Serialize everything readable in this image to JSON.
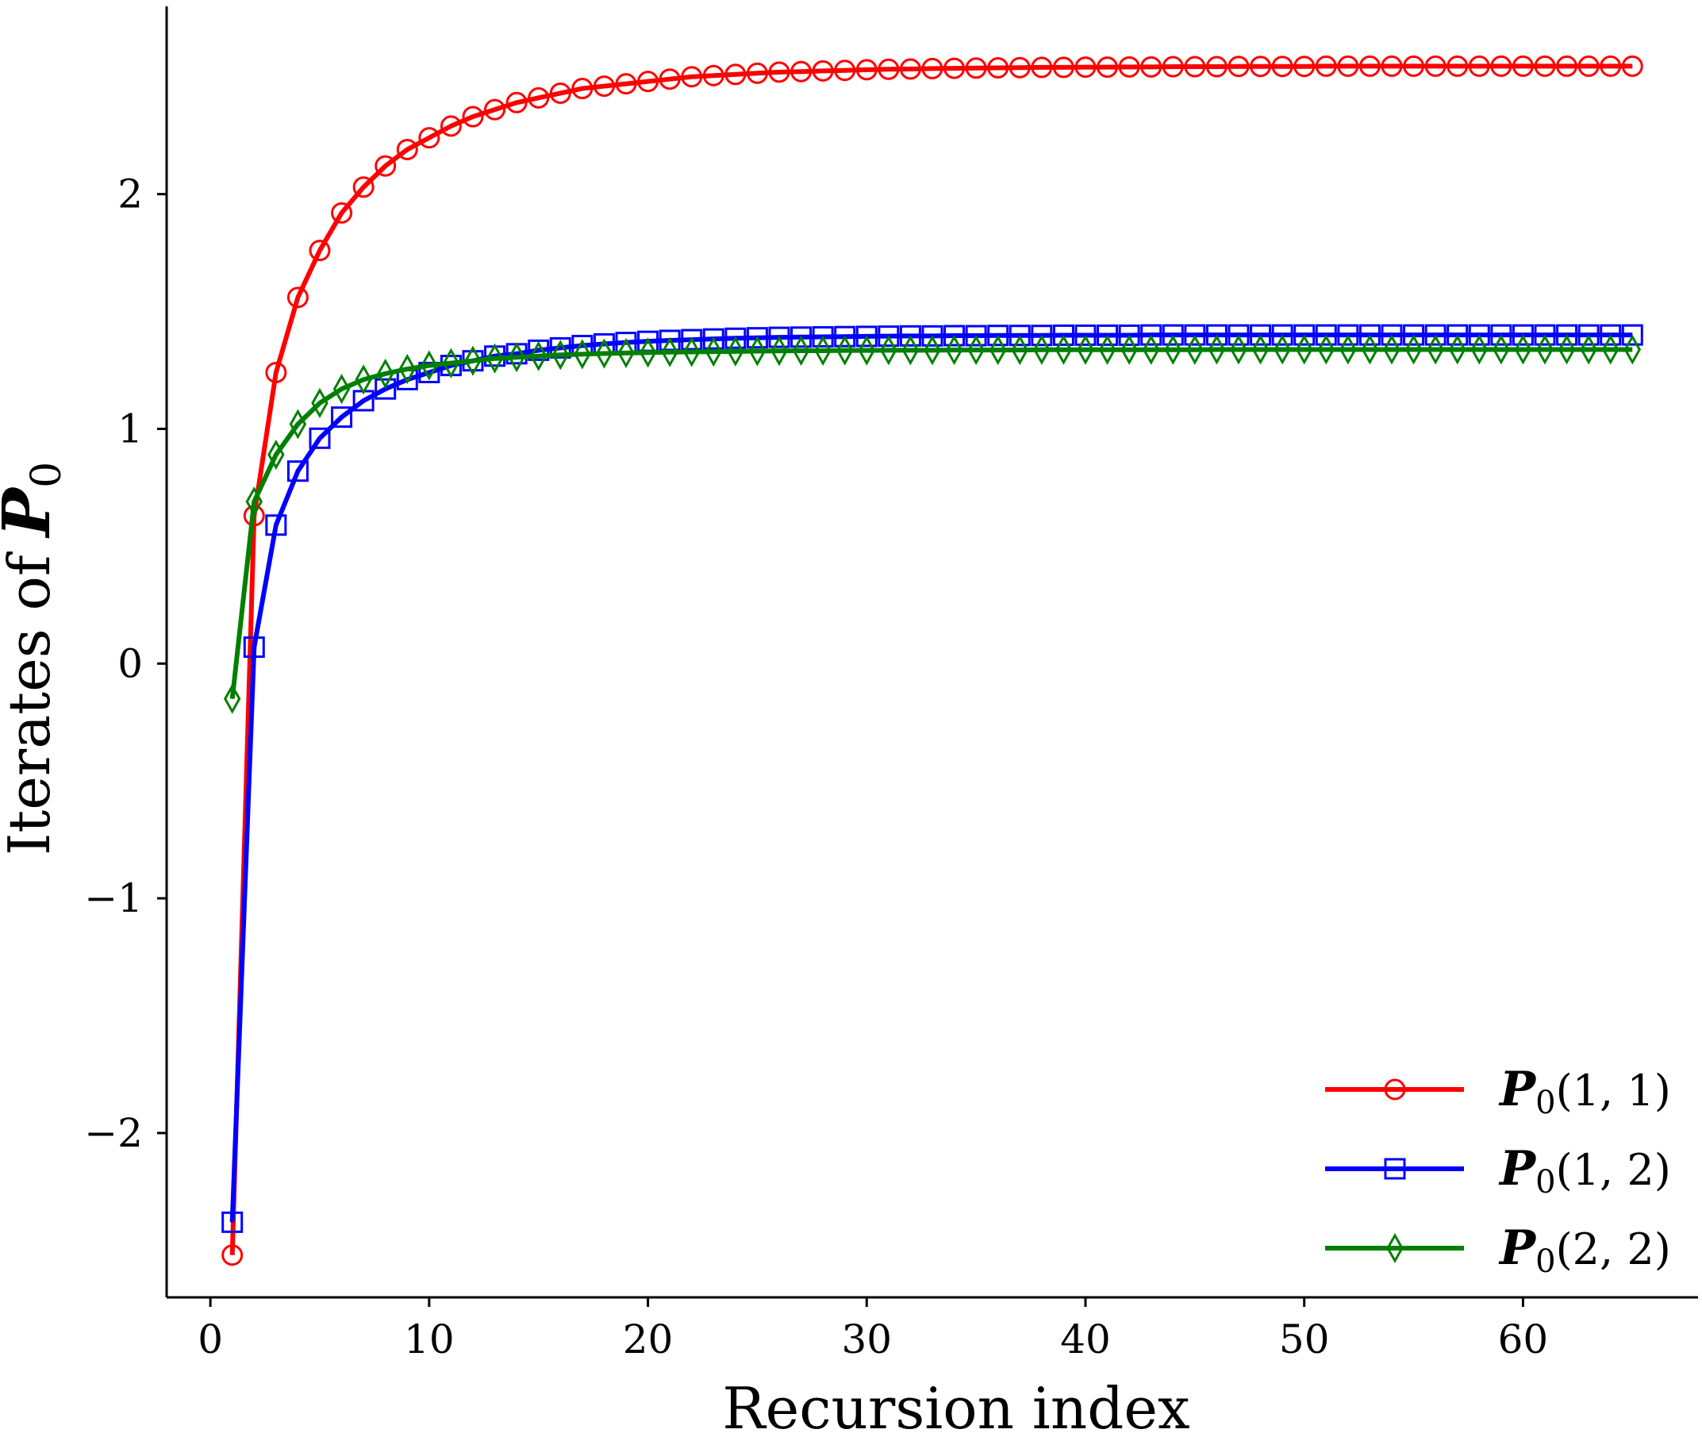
{
  "chart_data": {
    "type": "line",
    "title": "",
    "xlabel": "Recursion index",
    "ylabel_parts": {
      "text": "Iterates of ",
      "symbol": "P",
      "subscript": "0"
    },
    "xlim": [
      -2,
      68
    ],
    "ylim": [
      -2.7,
      2.8
    ],
    "xticks": [
      0,
      10,
      20,
      30,
      40,
      50,
      60
    ],
    "yticks": [
      -2,
      -1,
      0,
      1,
      2
    ],
    "ytick_labels": [
      "−2",
      "−1",
      "0",
      "1",
      "2"
    ],
    "grid": false,
    "legend_position": "lower-right",
    "series": [
      {
        "name_parts": {
          "symbol": "P",
          "subscript": "0",
          "args": "(1, 1)"
        },
        "color": "#ff0000",
        "marker": "circle",
        "x_start": 1,
        "x_end": 65,
        "values": [
          -2.52,
          0.63,
          1.24,
          1.56,
          1.76,
          1.92,
          2.03,
          2.12,
          2.19,
          2.24,
          2.29,
          2.33,
          2.36,
          2.39,
          2.41,
          2.43,
          2.45,
          2.46,
          2.47,
          2.48,
          2.49,
          2.5,
          2.505,
          2.51,
          2.515,
          2.52,
          2.522,
          2.525,
          2.527,
          2.53,
          2.532,
          2.533,
          2.535,
          2.536,
          2.537,
          2.538,
          2.539,
          2.54,
          2.54,
          2.541,
          2.541,
          2.542,
          2.542,
          2.543,
          2.543,
          2.543,
          2.544,
          2.544,
          2.544,
          2.544,
          2.545,
          2.545,
          2.545,
          2.545,
          2.545,
          2.545,
          2.545,
          2.545,
          2.545,
          2.545,
          2.545,
          2.545,
          2.545,
          2.545,
          2.545
        ]
      },
      {
        "name_parts": {
          "symbol": "P",
          "subscript": "0",
          "args": "(1, 2)"
        },
        "color": "#0000ff",
        "marker": "square",
        "x_start": 1,
        "x_end": 65,
        "values": [
          -2.38,
          0.07,
          0.59,
          0.82,
          0.96,
          1.05,
          1.12,
          1.17,
          1.21,
          1.24,
          1.27,
          1.29,
          1.31,
          1.32,
          1.335,
          1.345,
          1.355,
          1.362,
          1.368,
          1.373,
          1.377,
          1.38,
          1.383,
          1.386,
          1.388,
          1.39,
          1.391,
          1.392,
          1.393,
          1.394,
          1.395,
          1.396,
          1.396,
          1.397,
          1.397,
          1.398,
          1.398,
          1.398,
          1.399,
          1.399,
          1.399,
          1.399,
          1.4,
          1.4,
          1.4,
          1.4,
          1.4,
          1.4,
          1.4,
          1.4,
          1.4,
          1.4,
          1.4,
          1.4,
          1.4,
          1.4,
          1.4,
          1.4,
          1.4,
          1.4,
          1.4,
          1.4,
          1.4,
          1.4,
          1.4
        ]
      },
      {
        "name_parts": {
          "symbol": "P",
          "subscript": "0",
          "args": "(2, 2)"
        },
        "color": "#008000",
        "marker": "diamond",
        "x_start": 1,
        "x_end": 65,
        "values": [
          -0.15,
          0.69,
          0.89,
          1.02,
          1.11,
          1.17,
          1.21,
          1.235,
          1.255,
          1.27,
          1.28,
          1.29,
          1.3,
          1.305,
          1.31,
          1.315,
          1.318,
          1.321,
          1.323,
          1.325,
          1.327,
          1.328,
          1.329,
          1.33,
          1.331,
          1.332,
          1.333,
          1.333,
          1.334,
          1.334,
          1.335,
          1.335,
          1.335,
          1.336,
          1.336,
          1.336,
          1.336,
          1.337,
          1.337,
          1.337,
          1.337,
          1.337,
          1.337,
          1.337,
          1.337,
          1.338,
          1.338,
          1.338,
          1.338,
          1.338,
          1.338,
          1.338,
          1.338,
          1.338,
          1.338,
          1.338,
          1.338,
          1.338,
          1.338,
          1.338,
          1.338,
          1.338,
          1.338,
          1.338,
          1.338
        ]
      }
    ]
  }
}
